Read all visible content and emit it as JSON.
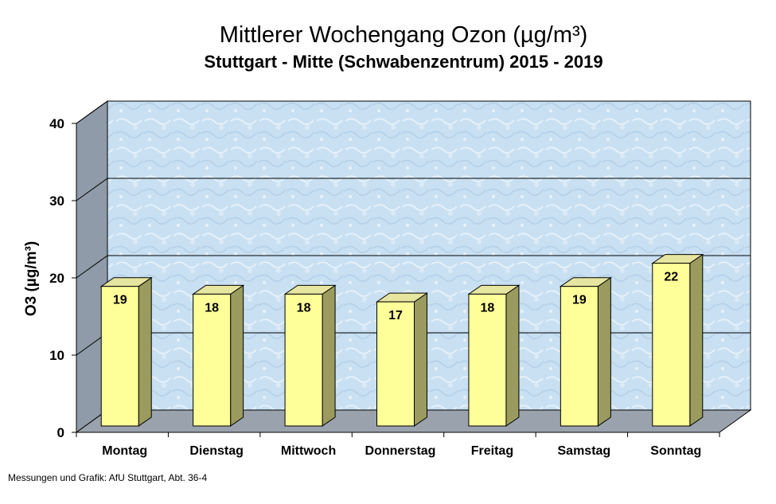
{
  "chart_data": {
    "type": "bar",
    "title": "Mittlerer Wochengang Ozon (µg/m³)",
    "subtitle": "Stuttgart - Mitte (Schwabenzentrum) 2015 - 2019",
    "ylabel": "O3 (µg/m³)",
    "xlabel": "",
    "categories": [
      "Montag",
      "Dienstag",
      "Mittwoch",
      "Donnerstag",
      "Freitag",
      "Samstag",
      "Sonntag"
    ],
    "values": [
      19,
      18,
      18,
      17,
      18,
      19,
      22
    ],
    "data_labels": [
      "19",
      "18",
      "18",
      "17",
      "18",
      "19",
      "22"
    ],
    "ylim": [
      0,
      40
    ],
    "yticks": [
      0,
      10,
      20,
      30,
      40
    ],
    "grid": true,
    "legend": "none",
    "colors": {
      "bar_front": "#ffff99",
      "bar_side": "#9b9b5f",
      "bar_top": "#e6e6a0",
      "back_wall": "#c6def0",
      "side_wall": "#8f9ba8",
      "floor": "#9aa3ad"
    }
  },
  "footer": "Messungen und Grafik: AfU Stuttgart, Abt. 36-4"
}
